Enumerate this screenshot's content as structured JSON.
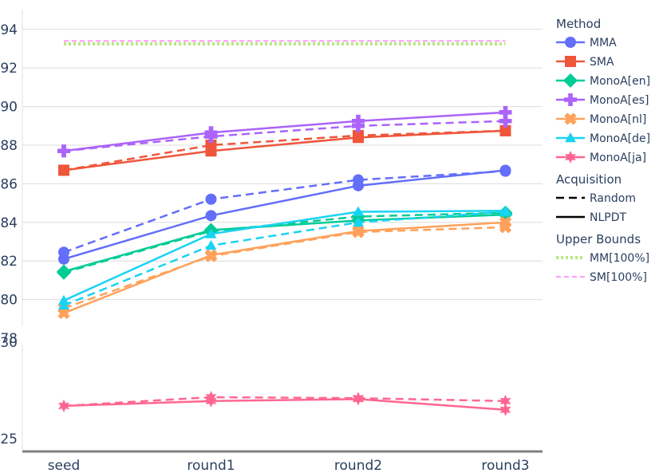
{
  "chart_data": {
    "type": "line",
    "categories": [
      "seed",
      "round1",
      "round2",
      "round3"
    ],
    "panels": [
      {
        "ylim": [
          78,
          95
        ],
        "yticks": [
          "78",
          "80",
          "82",
          "84",
          "86",
          "88",
          "90",
          "92",
          "94"
        ]
      },
      {
        "ylim": [
          24.2,
          31
        ],
        "yticks": [
          "25",
          "30"
        ]
      }
    ],
    "series": [
      {
        "name": "MMA",
        "color": "#636efa",
        "marker": "circle",
        "panel": 0,
        "nlpdt": [
          82.1,
          84.35,
          85.9,
          86.7
        ],
        "random": [
          82.45,
          85.2,
          86.2,
          86.65
        ]
      },
      {
        "name": "SMA",
        "color": "#ef553b",
        "marker": "square",
        "panel": 0,
        "nlpdt": [
          86.7,
          87.7,
          88.4,
          88.75
        ],
        "random": [
          86.7,
          88.0,
          88.5,
          88.75
        ]
      },
      {
        "name": "MonoA[en]",
        "color": "#00cc96",
        "marker": "diamond",
        "panel": 0,
        "nlpdt": [
          81.45,
          83.6,
          84.1,
          84.4
        ],
        "random": [
          81.4,
          83.55,
          84.3,
          84.5
        ]
      },
      {
        "name": "MonoA[es]",
        "color": "#ab63fa",
        "marker": "cross",
        "panel": 0,
        "nlpdt": [
          87.7,
          88.65,
          89.25,
          89.7
        ],
        "random": [
          87.7,
          88.45,
          89.0,
          89.25
        ]
      },
      {
        "name": "MonoA[nl]",
        "color": "#ffa15a",
        "marker": "x",
        "panel": 0,
        "nlpdt": [
          79.3,
          82.3,
          83.55,
          84.0
        ],
        "random": [
          79.55,
          82.25,
          83.5,
          83.75
        ]
      },
      {
        "name": "MonoA[de]",
        "color": "#19d3f3",
        "marker": "triangle",
        "panel": 0,
        "nlpdt": [
          79.95,
          83.4,
          84.55,
          84.6
        ],
        "random": [
          79.7,
          82.8,
          84.0,
          84.55
        ]
      },
      {
        "name": "MonoA[ja]",
        "color": "#ff6692",
        "marker": "hexagram",
        "panel": 1,
        "nlpdt": [
          26.7,
          26.95,
          27.05,
          26.5
        ],
        "random": [
          26.7,
          27.15,
          27.1,
          26.95
        ]
      }
    ],
    "upper_bounds": [
      {
        "name": "MM[100%]",
        "color": "#b6e880",
        "value": 93.25,
        "style": "dot"
      },
      {
        "name": "SM[100%]",
        "color": "#ff97ff",
        "value": 93.4,
        "style": "dash"
      }
    ],
    "legend": {
      "placement": "right",
      "groups": [
        {
          "title": "Method",
          "items": [
            "MMA",
            "SMA",
            "MonoA[en]",
            "MonoA[es]",
            "MonoA[nl]",
            "MonoA[de]",
            "MonoA[ja]"
          ]
        },
        {
          "title": "Acquisition",
          "items": [
            "Random",
            "NLPDT"
          ]
        },
        {
          "title": "Upper Bounds",
          "items": [
            "MM[100%]",
            "SM[100%]"
          ]
        }
      ]
    },
    "grid": true
  }
}
